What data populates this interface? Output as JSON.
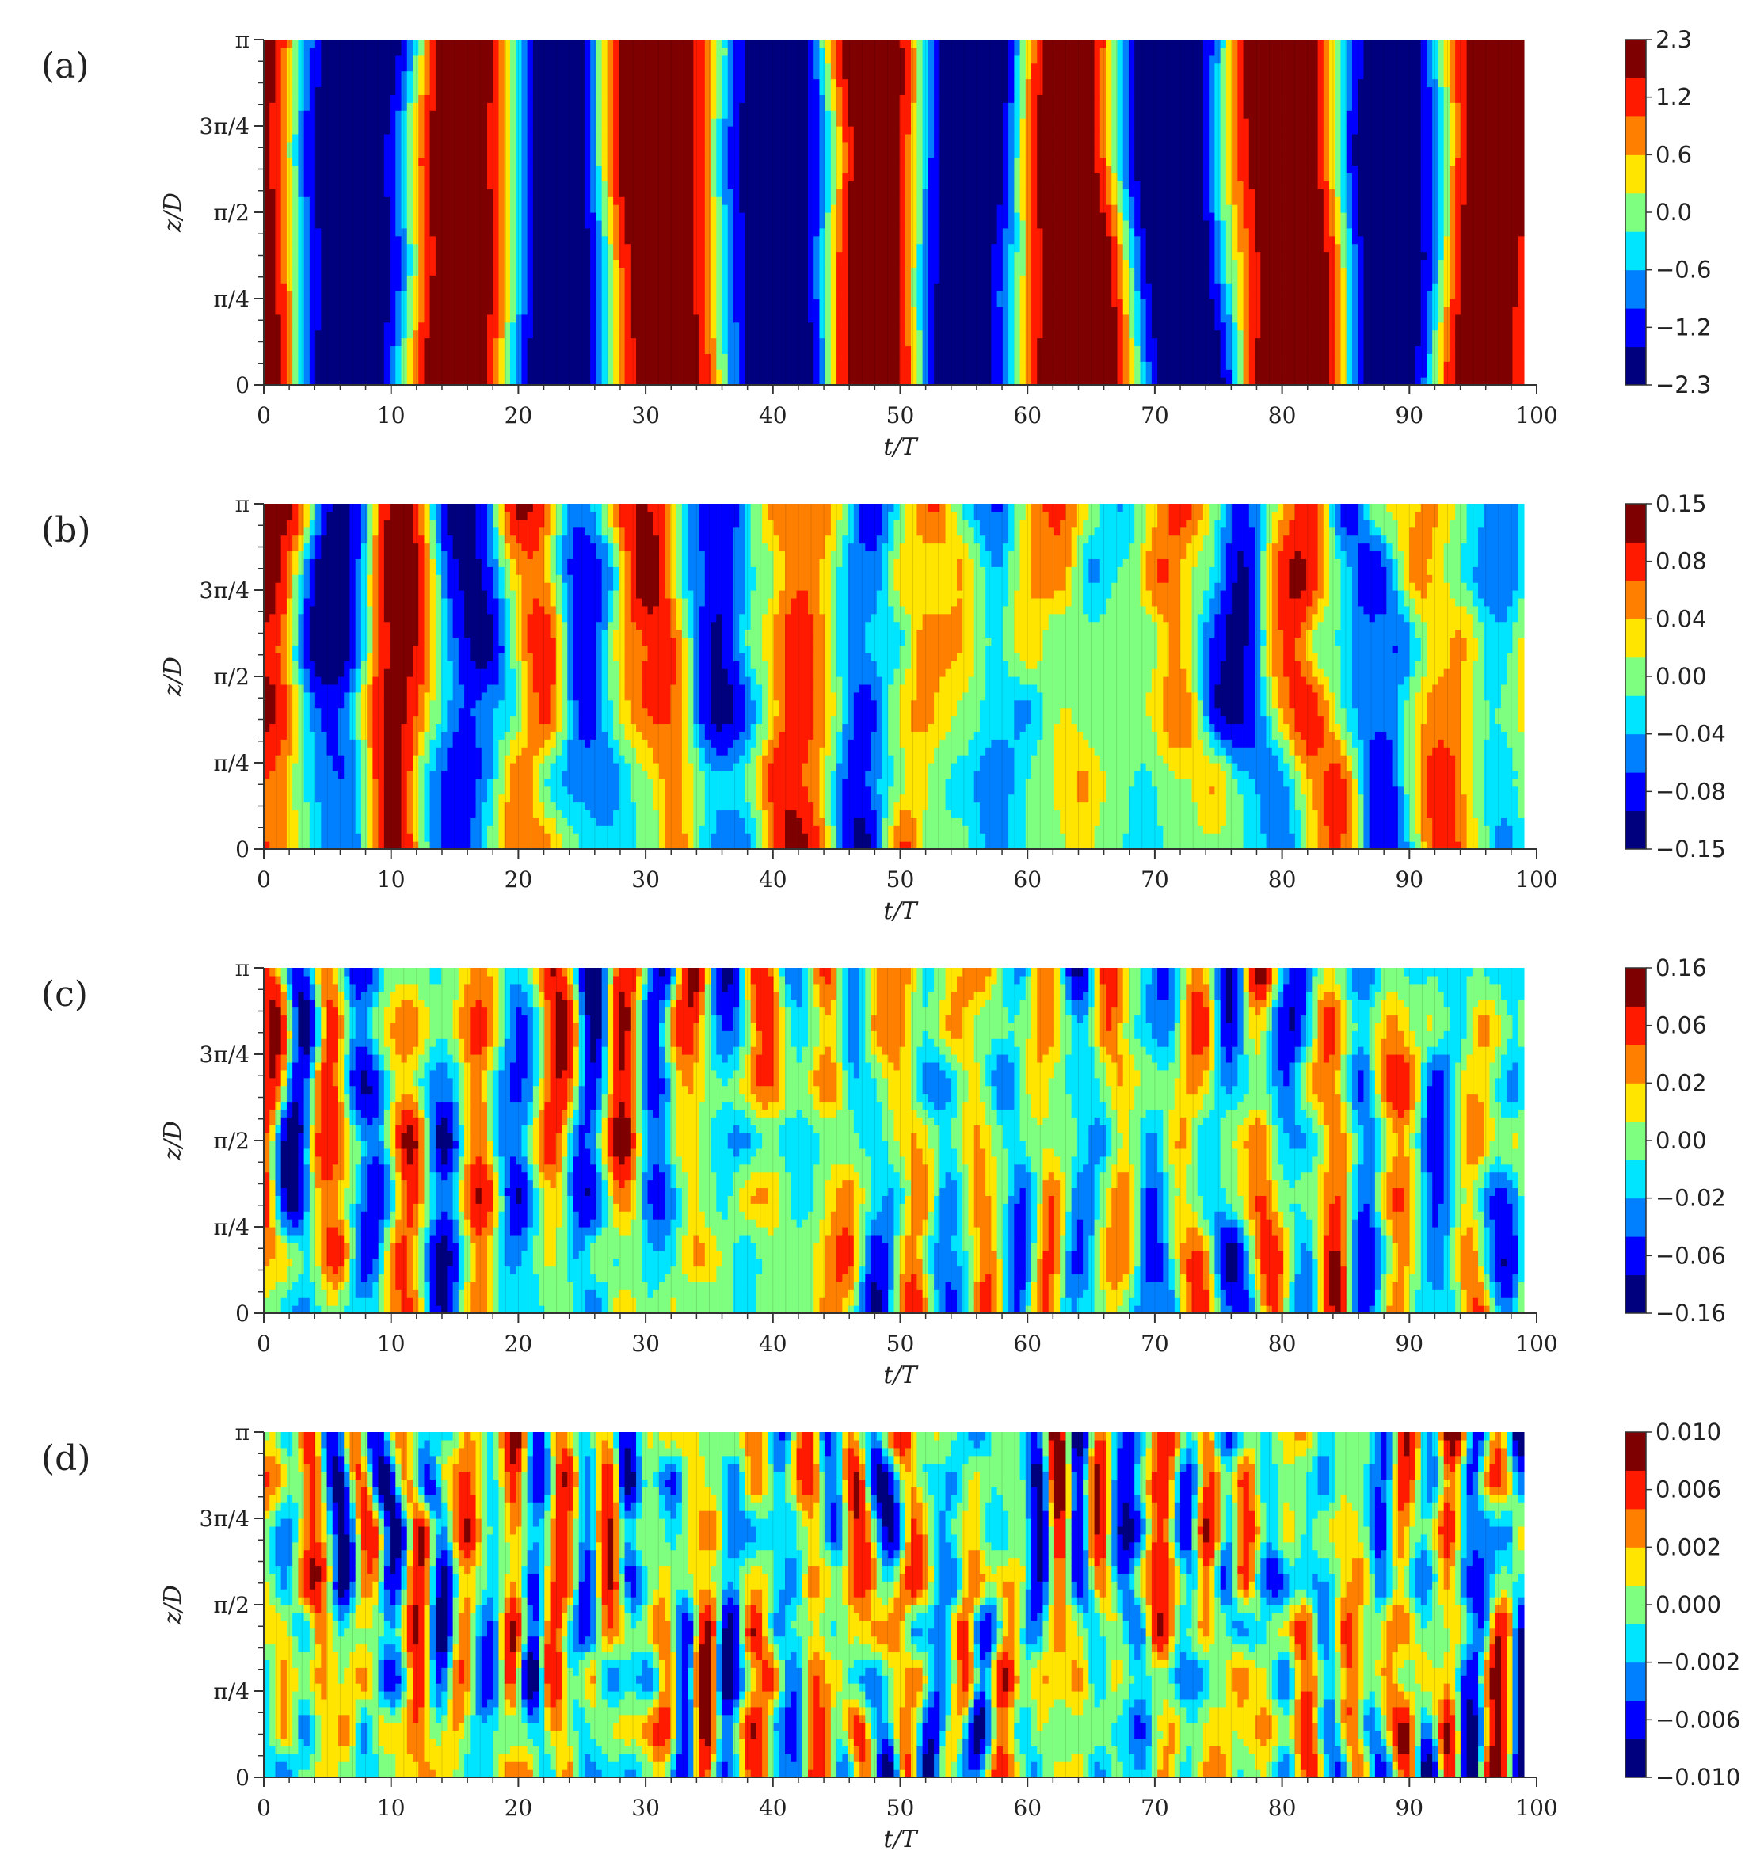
{
  "chart_data": [
    {
      "type": "heatmap",
      "panel_label": "(a)",
      "xlabel": "t/T",
      "ylabel": "z/D",
      "xlim": [
        0,
        100
      ],
      "ylim": [
        0,
        3.14159
      ],
      "x_ticks": [
        "0",
        "10",
        "20",
        "30",
        "40",
        "50",
        "60",
        "70",
        "80",
        "90",
        "100"
      ],
      "y_ticks": [
        "0",
        "π/4",
        "π/2",
        "3π/4",
        "π"
      ],
      "colorbar_levels": [
        "2.3",
        "1.2",
        "0.6",
        "0.0",
        "−0.6",
        "−1.2",
        "−2.3"
      ],
      "colorbar_range": [
        -2.3,
        2.3
      ],
      "colormap": [
        "#00007f",
        "#0000ff",
        "#0080ff",
        "#00e5ff",
        "#7fff7f",
        "#ffe500",
        "#ff8000",
        "#ff1a00",
        "#7f0000"
      ],
      "dominant_period_tT": 16,
      "pattern": "near-vertical alternating bands, strongly coherent along span"
    },
    {
      "type": "heatmap",
      "panel_label": "(b)",
      "xlabel": "t/T",
      "ylabel": "z/D",
      "xlim": [
        0,
        100
      ],
      "ylim": [
        0,
        3.14159
      ],
      "x_ticks": [
        "0",
        "10",
        "20",
        "30",
        "40",
        "50",
        "60",
        "70",
        "80",
        "90",
        "100"
      ],
      "y_ticks": [
        "0",
        "π/4",
        "π/2",
        "3π/4",
        "π"
      ],
      "colorbar_levels": [
        "0.15",
        "0.08",
        "0.04",
        "0.00",
        "−0.04",
        "−0.08",
        "−0.15"
      ],
      "colorbar_range": [
        -0.15,
        0.15
      ],
      "colormap": [
        "#00007f",
        "#0000ff",
        "#0080ff",
        "#00e5ff",
        "#7fff7f",
        "#ffe500",
        "#ff8000",
        "#ff1a00",
        "#7f0000"
      ],
      "dominant_period_tT": 10,
      "pattern": "patchy bands with partial spanwise coherence"
    },
    {
      "type": "heatmap",
      "panel_label": "(c)",
      "xlabel": "t/T",
      "ylabel": "z/D",
      "xlim": [
        0,
        100
      ],
      "ylim": [
        0,
        3.14159
      ],
      "x_ticks": [
        "0",
        "10",
        "20",
        "30",
        "40",
        "50",
        "60",
        "70",
        "80",
        "90",
        "100"
      ],
      "y_ticks": [
        "0",
        "π/4",
        "π/2",
        "3π/4",
        "π"
      ],
      "colorbar_levels": [
        "0.16",
        "0.06",
        "0.02",
        "0.00",
        "−0.02",
        "−0.06",
        "−0.16"
      ],
      "colorbar_range": [
        -0.16,
        0.16
      ],
      "colormap": [
        "#00007f",
        "#0000ff",
        "#0080ff",
        "#00e5ff",
        "#7fff7f",
        "#ffe500",
        "#ff8000",
        "#ff1a00",
        "#7f0000"
      ],
      "dominant_period_tT": 5.5,
      "pattern": "narrow vertical streaks"
    },
    {
      "type": "heatmap",
      "panel_label": "(d)",
      "xlabel": "t/T",
      "ylabel": "z/D",
      "xlim": [
        0,
        100
      ],
      "ylim": [
        0,
        3.14159
      ],
      "x_ticks": [
        "0",
        "10",
        "20",
        "30",
        "40",
        "50",
        "60",
        "70",
        "80",
        "90",
        "100"
      ],
      "y_ticks": [
        "0",
        "π/4",
        "π/2",
        "3π/4",
        "π"
      ],
      "colorbar_levels": [
        "0.010",
        "0.006",
        "0.002",
        "0.000",
        "−0.002",
        "−0.006",
        "−0.010"
      ],
      "colorbar_range": [
        -0.01,
        0.01
      ],
      "colormap": [
        "#00007f",
        "#0000ff",
        "#0080ff",
        "#00e5ff",
        "#7fff7f",
        "#ffe500",
        "#ff8000",
        "#ff1a00",
        "#7f0000"
      ],
      "dominant_period_tT": 3.8,
      "pattern": "fragmented small-scale cells"
    }
  ]
}
